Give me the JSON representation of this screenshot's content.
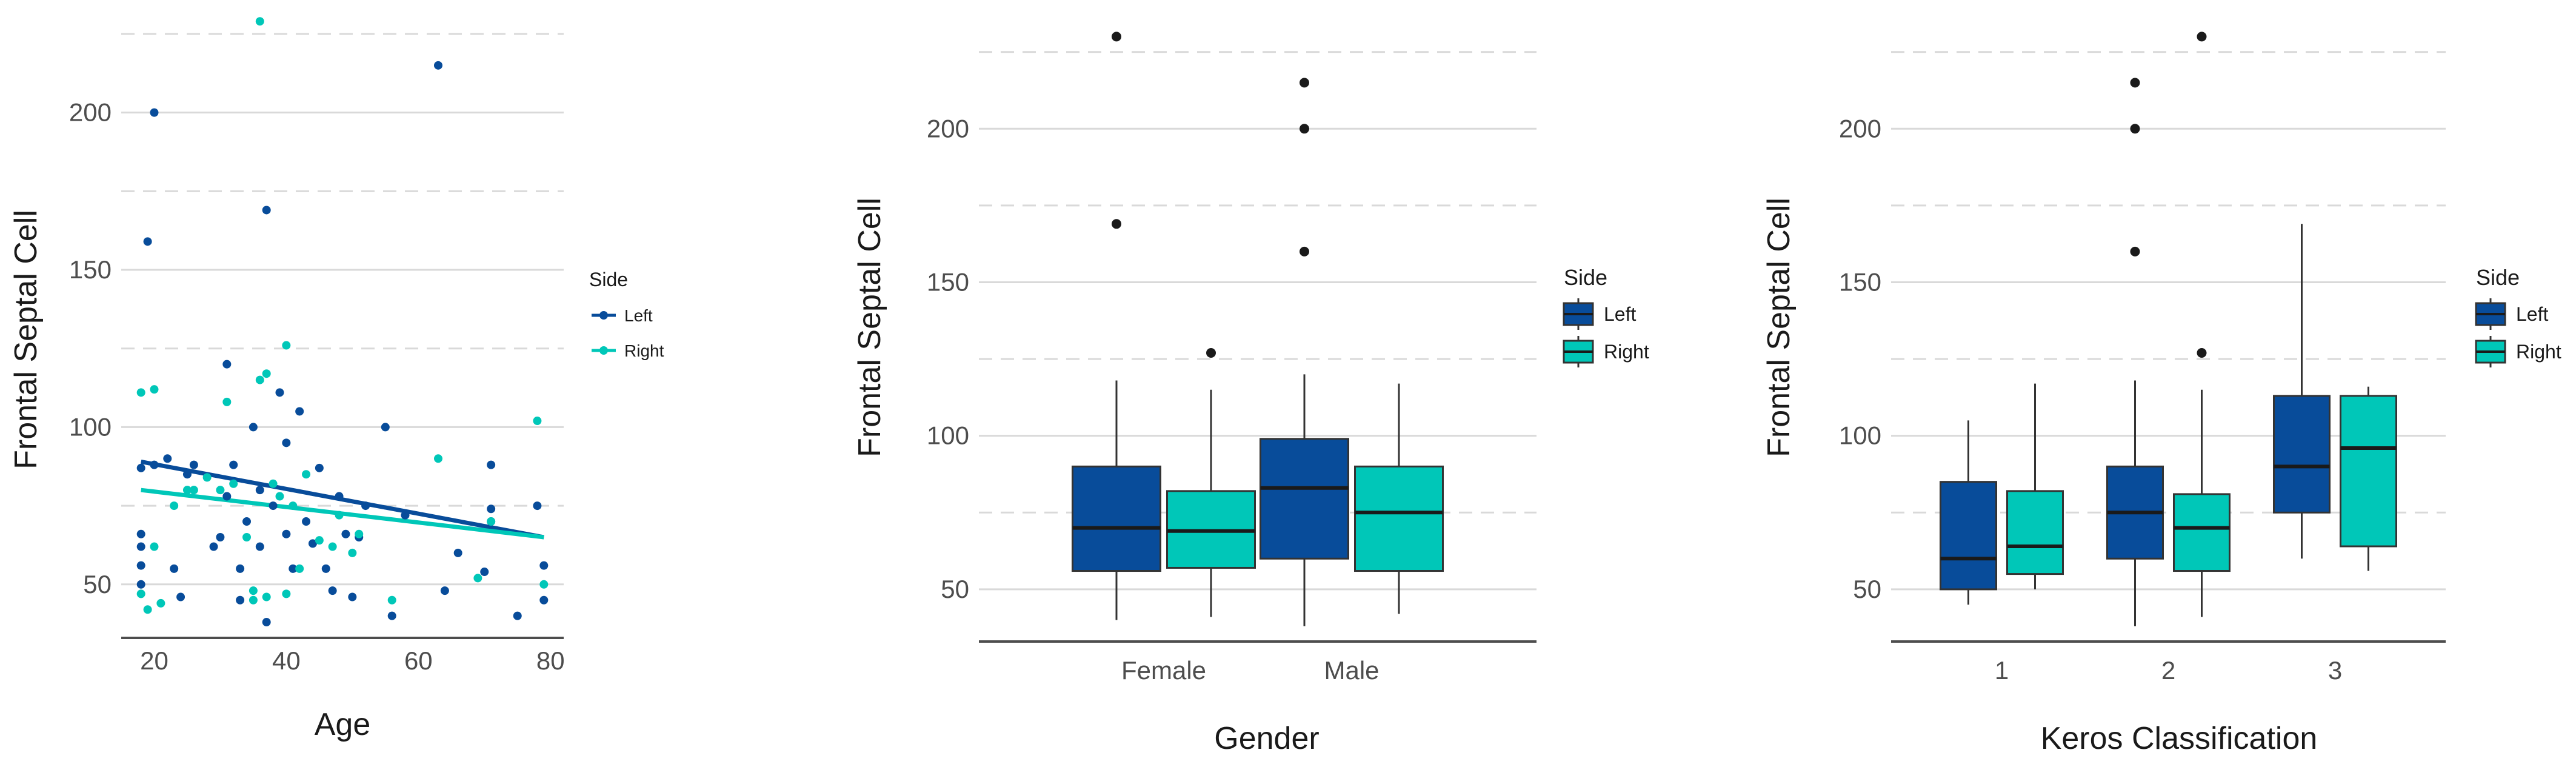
{
  "colors": {
    "left": "#084c9a",
    "right": "#00c7b8",
    "whisker": "#333333",
    "outlier": "#1a1a1a"
  },
  "chart_data": [
    {
      "type": "scatter",
      "xlabel": "Age",
      "ylabel": "Frontal Septal Cell",
      "xlim": [
        15,
        82
      ],
      "ylim": [
        33,
        230
      ],
      "xticks": [
        "20",
        "40",
        "60",
        "80"
      ],
      "yticks": [
        "50",
        "100",
        "150",
        "200"
      ],
      "legend": {
        "title": "Side",
        "entries": [
          "Left",
          "Right"
        ],
        "placement": "right"
      },
      "trend_lines": [
        {
          "name": "Left",
          "x": [
            18,
            79
          ],
          "y": [
            89,
            65
          ]
        },
        {
          "name": "Right",
          "x": [
            18,
            79
          ],
          "y": [
            80,
            65
          ]
        }
      ],
      "series": [
        {
          "name": "Left",
          "points": [
            [
              18,
              87
            ],
            [
              18,
              66
            ],
            [
              18,
              62
            ],
            [
              18,
              50
            ],
            [
              18,
              56
            ],
            [
              19,
              159
            ],
            [
              20,
              200
            ],
            [
              20,
              88
            ],
            [
              22,
              90
            ],
            [
              23,
              55
            ],
            [
              24,
              46
            ],
            [
              25,
              85
            ],
            [
              26,
              88
            ],
            [
              29,
              62
            ],
            [
              30,
              65
            ],
            [
              31,
              120
            ],
            [
              31,
              78
            ],
            [
              32,
              88
            ],
            [
              33,
              55
            ],
            [
              33,
              45
            ],
            [
              34,
              70
            ],
            [
              35,
              100
            ],
            [
              36,
              62
            ],
            [
              36,
              80
            ],
            [
              37,
              169
            ],
            [
              37,
              38
            ],
            [
              38,
              75
            ],
            [
              39,
              111
            ],
            [
              40,
              95
            ],
            [
              40,
              66
            ],
            [
              41,
              55
            ],
            [
              42,
              105
            ],
            [
              43,
              70
            ],
            [
              44,
              63
            ],
            [
              45,
              87
            ],
            [
              46,
              55
            ],
            [
              47,
              48
            ],
            [
              48,
              78
            ],
            [
              49,
              66
            ],
            [
              50,
              46
            ],
            [
              51,
              65
            ],
            [
              52,
              75
            ],
            [
              55,
              100
            ],
            [
              56,
              40
            ],
            [
              58,
              72
            ],
            [
              63,
              215
            ],
            [
              64,
              48
            ],
            [
              66,
              60
            ],
            [
              70,
              54
            ],
            [
              71,
              88
            ],
            [
              71,
              74
            ],
            [
              71,
              70
            ],
            [
              75,
              40
            ],
            [
              78,
              75
            ],
            [
              79,
              56
            ],
            [
              79,
              45
            ]
          ]
        },
        {
          "name": "Right",
          "points": [
            [
              18,
              111
            ],
            [
              18,
              47
            ],
            [
              19,
              42
            ],
            [
              20,
              62
            ],
            [
              20,
              112
            ],
            [
              21,
              44
            ],
            [
              23,
              75
            ],
            [
              25,
              80
            ],
            [
              26,
              80
            ],
            [
              28,
              84
            ],
            [
              30,
              80
            ],
            [
              31,
              108
            ],
            [
              32,
              82
            ],
            [
              34,
              65
            ],
            [
              35,
              48
            ],
            [
              35,
              45
            ],
            [
              36,
              229
            ],
            [
              36,
              115
            ],
            [
              37,
              117
            ],
            [
              37,
              46
            ],
            [
              38,
              82
            ],
            [
              39,
              78
            ],
            [
              40,
              126
            ],
            [
              40,
              47
            ],
            [
              41,
              75
            ],
            [
              42,
              55
            ],
            [
              43,
              85
            ],
            [
              45,
              64
            ],
            [
              47,
              62
            ],
            [
              48,
              72
            ],
            [
              50,
              60
            ],
            [
              51,
              66
            ],
            [
              56,
              45
            ],
            [
              63,
              90
            ],
            [
              69,
              52
            ],
            [
              71,
              70
            ],
            [
              78,
              102
            ],
            [
              79,
              50
            ]
          ]
        }
      ]
    },
    {
      "type": "box",
      "xlabel": "Gender",
      "ylabel": "Frontal Septal Cell",
      "ylim": [
        33,
        236
      ],
      "yticks": [
        "50",
        "100",
        "150",
        "200"
      ],
      "categories": [
        "Female",
        "Male"
      ],
      "legend": {
        "title": "Side",
        "entries": [
          "Left",
          "Right"
        ],
        "placement": "right"
      },
      "groups": [
        {
          "category": "Female",
          "side": "Left",
          "min": 40,
          "q1": 56,
          "median": 70,
          "q3": 90,
          "max": 118,
          "outliers": [
            169,
            230
          ]
        },
        {
          "category": "Female",
          "side": "Right",
          "min": 41,
          "q1": 57,
          "median": 69,
          "q3": 82,
          "max": 115,
          "outliers": [
            127
          ]
        },
        {
          "category": "Male",
          "side": "Left",
          "min": 38,
          "q1": 60,
          "median": 83,
          "q3": 99,
          "max": 120,
          "outliers": [
            160,
            200,
            215
          ]
        },
        {
          "category": "Male",
          "side": "Right",
          "min": 42,
          "q1": 56,
          "median": 75,
          "q3": 90,
          "max": 117,
          "outliers": []
        }
      ]
    },
    {
      "type": "box",
      "xlabel": "Keros Classification",
      "ylabel": "Frontal Septal Cell",
      "ylim": [
        33,
        236
      ],
      "yticks": [
        "50",
        "100",
        "150",
        "200"
      ],
      "categories": [
        "1",
        "2",
        "3"
      ],
      "legend": {
        "title": "Side",
        "entries": [
          "Left",
          "Right"
        ],
        "placement": "right"
      },
      "groups": [
        {
          "category": "1",
          "side": "Left",
          "min": 45,
          "q1": 50,
          "median": 60,
          "q3": 85,
          "max": 105,
          "outliers": []
        },
        {
          "category": "1",
          "side": "Right",
          "min": 50,
          "q1": 55,
          "median": 64,
          "q3": 82,
          "max": 117,
          "outliers": []
        },
        {
          "category": "2",
          "side": "Left",
          "min": 38,
          "q1": 60,
          "median": 75,
          "q3": 90,
          "max": 118,
          "outliers": [
            160,
            200,
            215
          ]
        },
        {
          "category": "2",
          "side": "Right",
          "min": 41,
          "q1": 56,
          "median": 70,
          "q3": 81,
          "max": 115,
          "outliers": [
            127,
            230
          ]
        },
        {
          "category": "3",
          "side": "Left",
          "min": 60,
          "q1": 75,
          "median": 90,
          "q3": 113,
          "max": 169,
          "outliers": []
        },
        {
          "category": "3",
          "side": "Right",
          "min": 56,
          "q1": 64,
          "median": 96,
          "q3": 113,
          "max": 116,
          "outliers": []
        }
      ]
    }
  ]
}
